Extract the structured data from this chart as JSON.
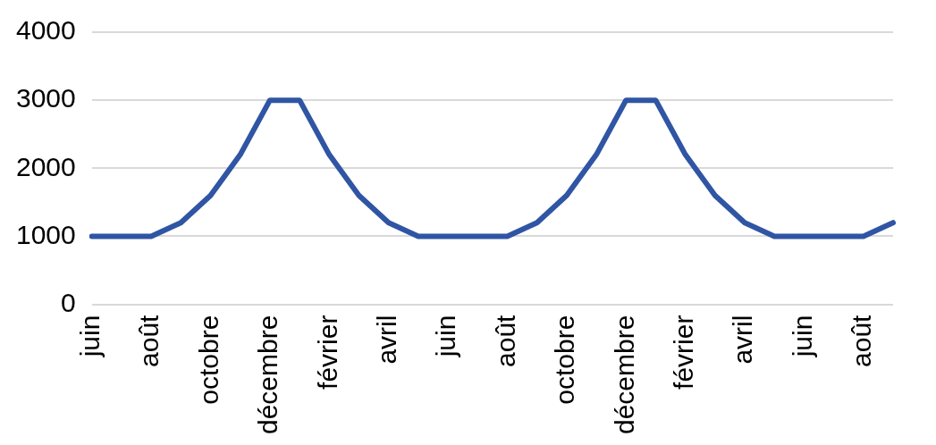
{
  "chart_data": {
    "type": "line",
    "categories": [
      "juin",
      null,
      "août",
      null,
      "octobre",
      null,
      "décembre",
      null,
      "février",
      null,
      "avril",
      null,
      "juin",
      null,
      "août",
      null,
      "octobre",
      null,
      "décembre",
      null,
      "février",
      null,
      "avril",
      null,
      "juin",
      null,
      "août",
      null
    ],
    "series": [
      {
        "color": "#2f55a4",
        "values": [
          1000,
          1000,
          1000,
          1200,
          1600,
          2200,
          3000,
          3000,
          2200,
          1600,
          1200,
          1000,
          1000,
          1000,
          1000,
          1200,
          1600,
          2200,
          3000,
          3000,
          2200,
          1600,
          1200,
          1000,
          1000,
          1000,
          1000,
          1200
        ]
      }
    ],
    "ylim": [
      0,
      4000
    ],
    "yticks": [
      0,
      1000,
      2000,
      3000,
      4000
    ],
    "grid": "y",
    "legend": false,
    "marker": "none",
    "line_style": "solid"
  }
}
